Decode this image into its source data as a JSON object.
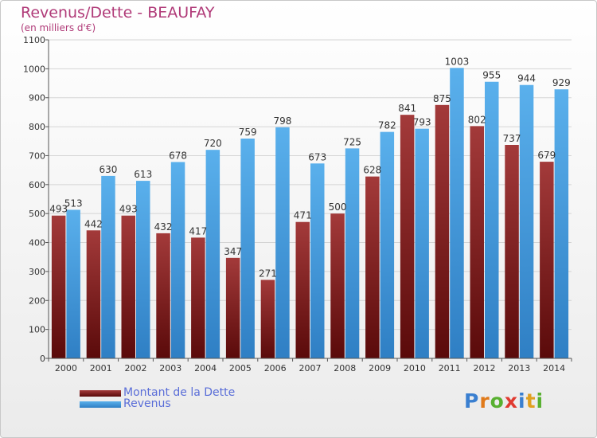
{
  "title": "Revenus/Dette - BEAUFAY",
  "subtitle": "(en milliers d'€)",
  "logo": {
    "letters": [
      "P",
      "r",
      "o",
      "x",
      "i",
      "t",
      "i"
    ],
    "colors": [
      "#3a7fd0",
      "#e07a1a",
      "#58b030",
      "#e03a30",
      "#3a7fd0",
      "#e0a020",
      "#58b030"
    ]
  },
  "colors": {
    "dette": "#7a1c1c",
    "revenus": "#4aa0e0",
    "title": "#b03a78",
    "legend_text": "#5a6ed8"
  },
  "chart_data": {
    "type": "bar",
    "categories": [
      "2000",
      "2001",
      "2002",
      "2003",
      "2004",
      "2005",
      "2006",
      "2007",
      "2008",
      "2009",
      "2010",
      "2011",
      "2012",
      "2013",
      "2014"
    ],
    "series": [
      {
        "name": "Montant de la Dette",
        "values": [
          493,
          442,
          493,
          432,
          417,
          347,
          271,
          471,
          500,
          628,
          841,
          875,
          802,
          737,
          679
        ]
      },
      {
        "name": "Revenus",
        "values": [
          513,
          630,
          613,
          678,
          720,
          759,
          798,
          673,
          725,
          782,
          793,
          1003,
          955,
          944,
          929
        ]
      }
    ],
    "yticks": [
      0,
      100,
      200,
      300,
      400,
      500,
      600,
      700,
      800,
      900,
      1000,
      1100
    ],
    "ylim": [
      0,
      1100
    ],
    "grid": true,
    "legend_position": "bottom-left"
  }
}
